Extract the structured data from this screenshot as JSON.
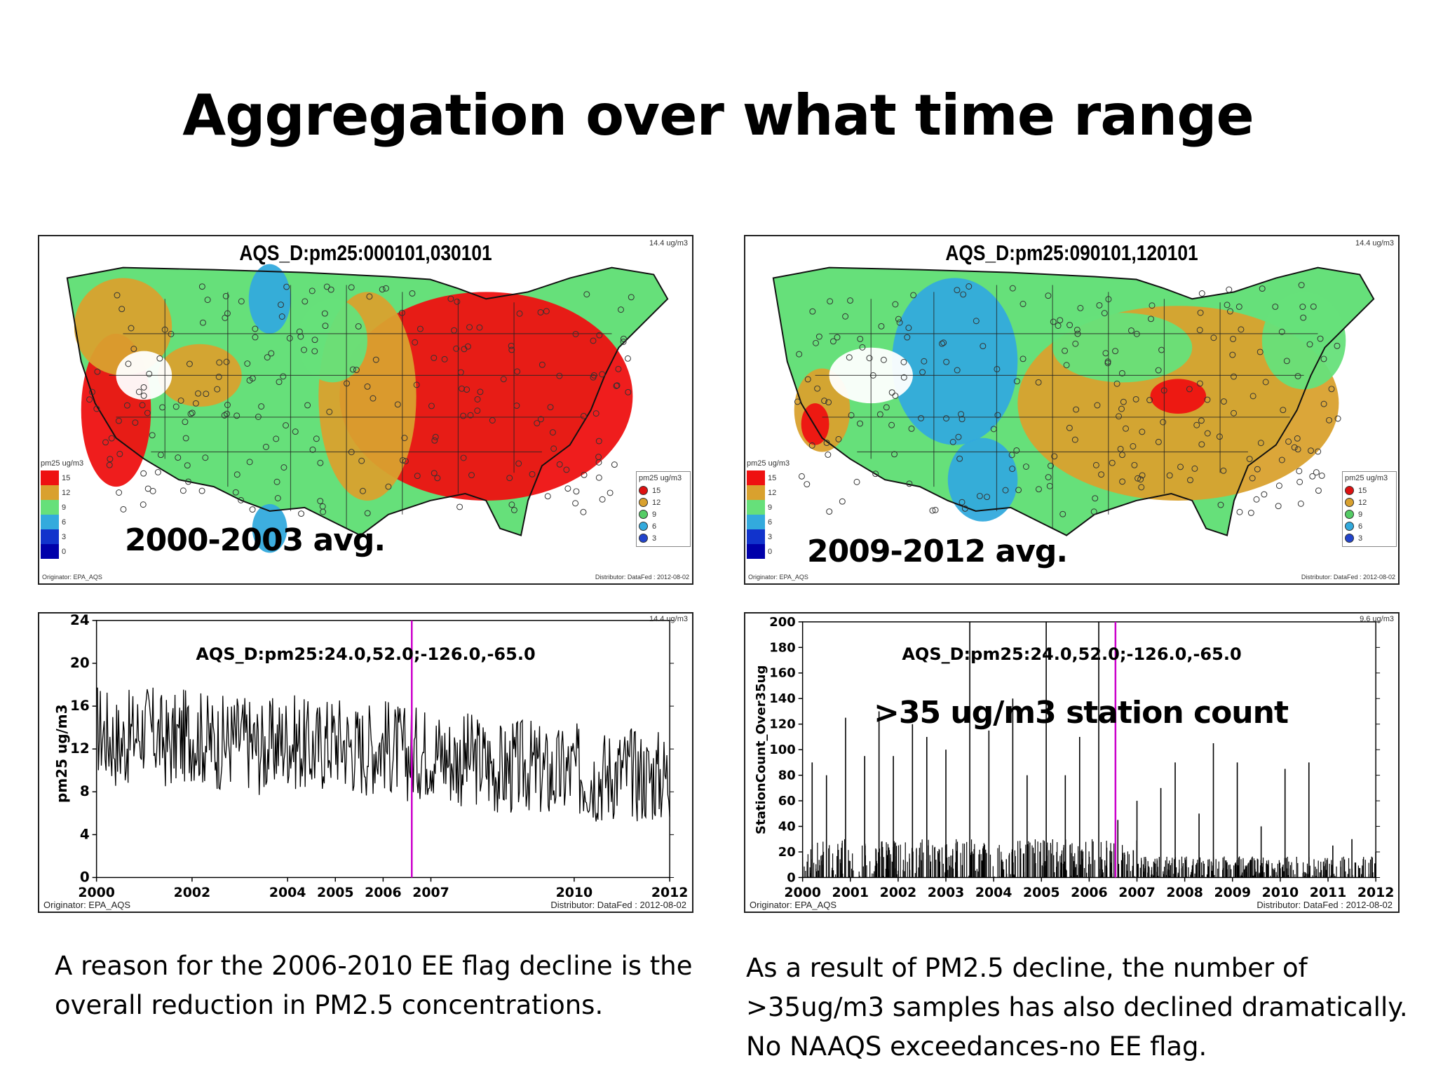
{
  "slide": {
    "title": "Aggregation over what time range"
  },
  "maps": [
    {
      "title": "AQS_D:pm25:000101,030101",
      "units": "14.4 ug/m3",
      "period_label": "2000-2003 avg.",
      "originator": "Originator: EPA_AQS",
      "distributor": "Distributor: DataFed : 2012-08-02",
      "legend_title": "pm25 ug/m3",
      "legend_levels": [
        {
          "label": "15",
          "color": "#ee1111"
        },
        {
          "label": "12",
          "color": "#d9a12e"
        },
        {
          "label": "9",
          "color": "#66e07a"
        },
        {
          "label": "6",
          "color": "#33aadd"
        },
        {
          "label": "3",
          "color": "#1133cc"
        },
        {
          "label": "0",
          "color": "#0000aa"
        }
      ],
      "station_legend_title": "pm25 ug/m3",
      "station_levels": [
        {
          "label": "15",
          "color": "#dd1111"
        },
        {
          "label": "12",
          "color": "#d9a12e"
        },
        {
          "label": "9",
          "color": "#55cc66"
        },
        {
          "label": "6",
          "color": "#33aadd"
        },
        {
          "label": "3",
          "color": "#2244cc"
        }
      ]
    },
    {
      "title": "AQS_D:pm25:090101,120101",
      "units": "14.4 ug/m3",
      "period_label": "2009-2012 avg.",
      "originator": "Originator: EPA_AQS",
      "distributor": "Distributor: DataFed : 2012-08-02",
      "legend_title": "pm25 ug/m3",
      "legend_levels": [
        {
          "label": "15",
          "color": "#ee1111"
        },
        {
          "label": "12",
          "color": "#d9a12e"
        },
        {
          "label": "9",
          "color": "#66e07a"
        },
        {
          "label": "6",
          "color": "#33aadd"
        },
        {
          "label": "3",
          "color": "#1133cc"
        },
        {
          "label": "0",
          "color": "#0000aa"
        }
      ],
      "station_legend_title": "pm25 ug/m3",
      "station_levels": [
        {
          "label": "15",
          "color": "#dd1111"
        },
        {
          "label": "12",
          "color": "#d9a12e"
        },
        {
          "label": "9",
          "color": "#55cc66"
        },
        {
          "label": "6",
          "color": "#33aadd"
        },
        {
          "label": "3",
          "color": "#2244cc"
        }
      ]
    }
  ],
  "chart_data": [
    {
      "type": "line",
      "title": "AQS_D:pm25:24.0,52.0;-126.0,-65.0",
      "ylabel": "pm25 ug/m3",
      "units": "14.4 ug/m3",
      "x_ticks": [
        "2000",
        "2002",
        "2004",
        "2005",
        "2006",
        "2007",
        "2010",
        "2012"
      ],
      "x_tick_years": [
        2000,
        2002,
        2004,
        2005,
        2006,
        2007,
        2010,
        2012
      ],
      "xlim": [
        2000,
        2012
      ],
      "y_ticks": [
        "0",
        "4",
        "8",
        "12",
        "16",
        "20",
        "24"
      ],
      "ylim": [
        0,
        24
      ],
      "series": [
        {
          "color": "#000000",
          "x": [
            2000.0,
            2000.5,
            2001.0,
            2001.5,
            2002.0,
            2002.5,
            2003.0,
            2003.5,
            2004.0,
            2004.5,
            2005.0,
            2005.5,
            2006.0,
            2006.5,
            2007.0,
            2007.5,
            2008.0,
            2008.5,
            2009.0,
            2009.5,
            2010.0,
            2010.5,
            2011.0,
            2011.5,
            2012.0
          ],
          "y": [
            14,
            12.5,
            14,
            12.5,
            13.5,
            12.5,
            13,
            12,
            13,
            12,
            13,
            12,
            12.5,
            11.5,
            12,
            11,
            11,
            10,
            10.5,
            9.5,
            10,
            9.5,
            10,
            9.5,
            9.5
          ]
        }
      ],
      "marker_line_x": 2006.6,
      "marker_line_color": "#cc00cc",
      "originator": "Originator: EPA_AQS",
      "distributor": "Distributor: DataFed : 2012-08-02"
    },
    {
      "type": "bar",
      "title": "AQS_D:pm25:24.0,52.0;-126.0,-65.0",
      "ylabel": "StationCount_Over35ug",
      "units": "9.6 ug/m3",
      "overlay_label": ">35 ug/m3 station count",
      "x_ticks": [
        "2000",
        "2001",
        "2002",
        "2003",
        "2004",
        "2005",
        "2006",
        "2007",
        "2008",
        "2009",
        "2010",
        "2011",
        "2012"
      ],
      "xlim": [
        2000,
        2012
      ],
      "y_ticks": [
        "0",
        "20",
        "40",
        "60",
        "80",
        "100",
        "120",
        "140",
        "160",
        "180",
        "200"
      ],
      "ylim": [
        0,
        200
      ],
      "series": [
        {
          "color": "#000000",
          "x": [
            2000.2,
            2000.5,
            2000.9,
            2001.3,
            2001.6,
            2001.9,
            2002.3,
            2002.6,
            2003.0,
            2003.5,
            2003.9,
            2004.4,
            2004.7,
            2005.1,
            2005.5,
            2005.8,
            2006.2,
            2006.6,
            2007.0,
            2007.5,
            2007.8,
            2008.3,
            2008.6,
            2009.1,
            2009.6,
            2010.1,
            2010.6,
            2011.1,
            2011.5,
            2012.0
          ],
          "y": [
            90,
            80,
            125,
            95,
            130,
            95,
            120,
            110,
            100,
            200,
            115,
            140,
            80,
            200,
            80,
            110,
            200,
            45,
            60,
            70,
            90,
            50,
            105,
            90,
            40,
            85,
            90,
            25,
            30,
            20
          ]
        }
      ],
      "marker_line_x": 2006.55,
      "marker_line_color": "#cc00cc",
      "originator": "Originator: EPA_AQS",
      "distributor": "Distributor: DataFed : 2012-08-02"
    }
  ],
  "captions": {
    "left": [
      "A reason for the 2006-2010 EE flag decline is the",
      "overall reduction in PM2.5 concentrations."
    ],
    "right": [
      "As a result of PM2.5 decline, the number of",
      ">35ug/m3 samples has also declined dramatically.",
      "No NAAQS exceedances-no EE flag."
    ]
  }
}
